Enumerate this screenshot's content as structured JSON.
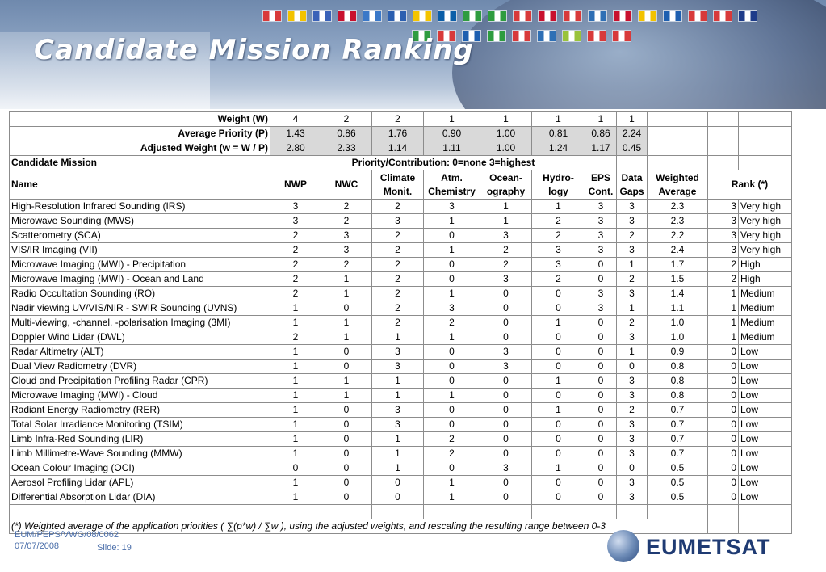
{
  "title": "Candidate Mission Ranking",
  "flag_colors_row1": [
    "#d83a3a",
    "#f2c200",
    "#3a62b8",
    "#c8102e",
    "#3a78c8",
    "#2b5fb0",
    "#f4c400",
    "#0b5ea8",
    "#2e9c3f",
    "#2e9c3f",
    "#d83a3a",
    "#c8102e",
    "#d83a3a",
    "#2e6fb5",
    "#c8102e",
    "#f2c200",
    "#1e5fb0",
    "#d83a3a",
    "#d83a3a",
    "#1e3c8a"
  ],
  "flag_colors_row2": [
    "#2e9c3f",
    "#d83a3a",
    "#1e5fb0",
    "#2e9c3f",
    "#d83a3a",
    "#2e6fb5",
    "#9ac33b",
    "#d83a3a",
    "#d83a3a"
  ],
  "table": {
    "weight_label": "Weight (W)",
    "weights": [
      "4",
      "2",
      "2",
      "1",
      "1",
      "1",
      "1",
      "1"
    ],
    "priority_label": "Average Priority (P)",
    "priorities": [
      "1.43",
      "0.86",
      "1.76",
      "0.90",
      "1.00",
      "0.81",
      "0.86",
      "2.24"
    ],
    "adjusted_label": "Adjusted Weight (w = W / P)",
    "adjusted": [
      "2.80",
      "2.33",
      "1.14",
      "1.11",
      "1.00",
      "1.24",
      "1.17",
      "0.45"
    ],
    "candidate_label": "Candidate Mission",
    "priority_contribution": "Priority/Contribution:   0=none  3=highest",
    "name_header": "Name",
    "col_headers": [
      "NWP",
      "NWC",
      "Climate Monit.",
      "Atm. Chemistry",
      "Ocean-ography",
      "Hydro-logy",
      "EPS Cont.",
      "Data Gaps",
      "Weighted Average"
    ],
    "rank_header": "Rank (*)",
    "rows": [
      {
        "name": "High-Resolution Infrared Sounding (IRS)",
        "v": [
          "3",
          "2",
          "2",
          "3",
          "1",
          "1",
          "3",
          "3"
        ],
        "avg": "2.3",
        "rank": "3",
        "label": "Very high"
      },
      {
        "name": "Microwave Sounding (MWS)",
        "v": [
          "3",
          "2",
          "3",
          "1",
          "1",
          "2",
          "3",
          "3"
        ],
        "avg": "2.3",
        "rank": "3",
        "label": "Very high"
      },
      {
        "name": "Scatterometry (SCA)",
        "v": [
          "2",
          "3",
          "2",
          "0",
          "3",
          "2",
          "3",
          "2"
        ],
        "avg": "2.2",
        "rank": "3",
        "label": "Very high"
      },
      {
        "name": "VIS/IR Imaging (VII)",
        "v": [
          "2",
          "3",
          "2",
          "1",
          "2",
          "3",
          "3",
          "3"
        ],
        "avg": "2.4",
        "rank": "3",
        "label": "Very high"
      },
      {
        "name": "Microwave Imaging (MWI) - Precipitation",
        "v": [
          "2",
          "2",
          "2",
          "0",
          "2",
          "3",
          "0",
          "1"
        ],
        "avg": "1.7",
        "rank": "2",
        "label": "High"
      },
      {
        "name": "Microwave Imaging (MWI) - Ocean and Land",
        "v": [
          "2",
          "1",
          "2",
          "0",
          "3",
          "2",
          "0",
          "2"
        ],
        "avg": "1.5",
        "rank": "2",
        "label": "High"
      },
      {
        "name": "Radio Occultation Sounding (RO)",
        "v": [
          "2",
          "1",
          "2",
          "1",
          "0",
          "0",
          "3",
          "3"
        ],
        "avg": "1.4",
        "rank": "1",
        "label": "Medium"
      },
      {
        "name": "Nadir viewing UV/VIS/NIR - SWIR Sounding (UVNS)",
        "v": [
          "1",
          "0",
          "2",
          "3",
          "0",
          "0",
          "3",
          "1"
        ],
        "avg": "1.1",
        "rank": "1",
        "label": "Medium"
      },
      {
        "name": "Multi-viewing, -channel, -polarisation Imaging (3MI)",
        "v": [
          "1",
          "1",
          "2",
          "2",
          "0",
          "1",
          "0",
          "2"
        ],
        "avg": "1.0",
        "rank": "1",
        "label": "Medium"
      },
      {
        "name": "Doppler Wind Lidar (DWL)",
        "v": [
          "2",
          "1",
          "1",
          "1",
          "0",
          "0",
          "0",
          "3"
        ],
        "avg": "1.0",
        "rank": "1",
        "label": "Medium"
      },
      {
        "name": "Radar Altimetry (ALT)",
        "v": [
          "1",
          "0",
          "3",
          "0",
          "3",
          "0",
          "0",
          "1"
        ],
        "avg": "0.9",
        "rank": "0",
        "label": "Low"
      },
      {
        "name": "Dual View Radiometry (DVR)",
        "v": [
          "1",
          "0",
          "3",
          "0",
          "3",
          "0",
          "0",
          "0"
        ],
        "avg": "0.8",
        "rank": "0",
        "label": "Low"
      },
      {
        "name": "Cloud and Precipitation Profiling Radar (CPR)",
        "v": [
          "1",
          "1",
          "1",
          "0",
          "0",
          "1",
          "0",
          "3"
        ],
        "avg": "0.8",
        "rank": "0",
        "label": "Low"
      },
      {
        "name": "Microwave Imaging (MWI) - Cloud",
        "v": [
          "1",
          "1",
          "1",
          "1",
          "0",
          "0",
          "0",
          "3"
        ],
        "avg": "0.8",
        "rank": "0",
        "label": "Low"
      },
      {
        "name": "Radiant Energy Radiometry (RER)",
        "v": [
          "1",
          "0",
          "3",
          "0",
          "0",
          "1",
          "0",
          "2"
        ],
        "avg": "0.7",
        "rank": "0",
        "label": "Low"
      },
      {
        "name": "Total Solar Irradiance Monitoring (TSIM)",
        "v": [
          "1",
          "0",
          "3",
          "0",
          "0",
          "0",
          "0",
          "3"
        ],
        "avg": "0.7",
        "rank": "0",
        "label": "Low"
      },
      {
        "name": "Limb Infra-Red Sounding (LIR)",
        "v": [
          "1",
          "0",
          "1",
          "2",
          "0",
          "0",
          "0",
          "3"
        ],
        "avg": "0.7",
        "rank": "0",
        "label": "Low"
      },
      {
        "name": "Limb Millimetre-Wave Sounding (MMW)",
        "v": [
          "1",
          "0",
          "1",
          "2",
          "0",
          "0",
          "0",
          "3"
        ],
        "avg": "0.7",
        "rank": "0",
        "label": "Low"
      },
      {
        "name": "Ocean Colour Imaging (OCI)",
        "v": [
          "0",
          "0",
          "1",
          "0",
          "3",
          "1",
          "0",
          "0"
        ],
        "avg": "0.5",
        "rank": "0",
        "label": "Low"
      },
      {
        "name": "Aerosol Profiling Lidar (APL)",
        "v": [
          "1",
          "0",
          "0",
          "1",
          "0",
          "0",
          "0",
          "3"
        ],
        "avg": "0.5",
        "rank": "0",
        "label": "Low"
      },
      {
        "name": "Differential Absorption Lidar (DIA)",
        "v": [
          "1",
          "0",
          "0",
          "1",
          "0",
          "0",
          "0",
          "3"
        ],
        "avg": "0.5",
        "rank": "0",
        "label": "Low"
      }
    ],
    "footnote": "(*) Weighted average of the application priorities ( ∑(p*w) / ∑w ), using the adjusted weights, and rescaling the resulting range between 0-3"
  },
  "footer": {
    "doc_ref": "EUM/PEPS/VWG/08/0062",
    "date": "07/07/2008",
    "slide": "Slide: 19",
    "logo_text": "EUMETSAT"
  }
}
